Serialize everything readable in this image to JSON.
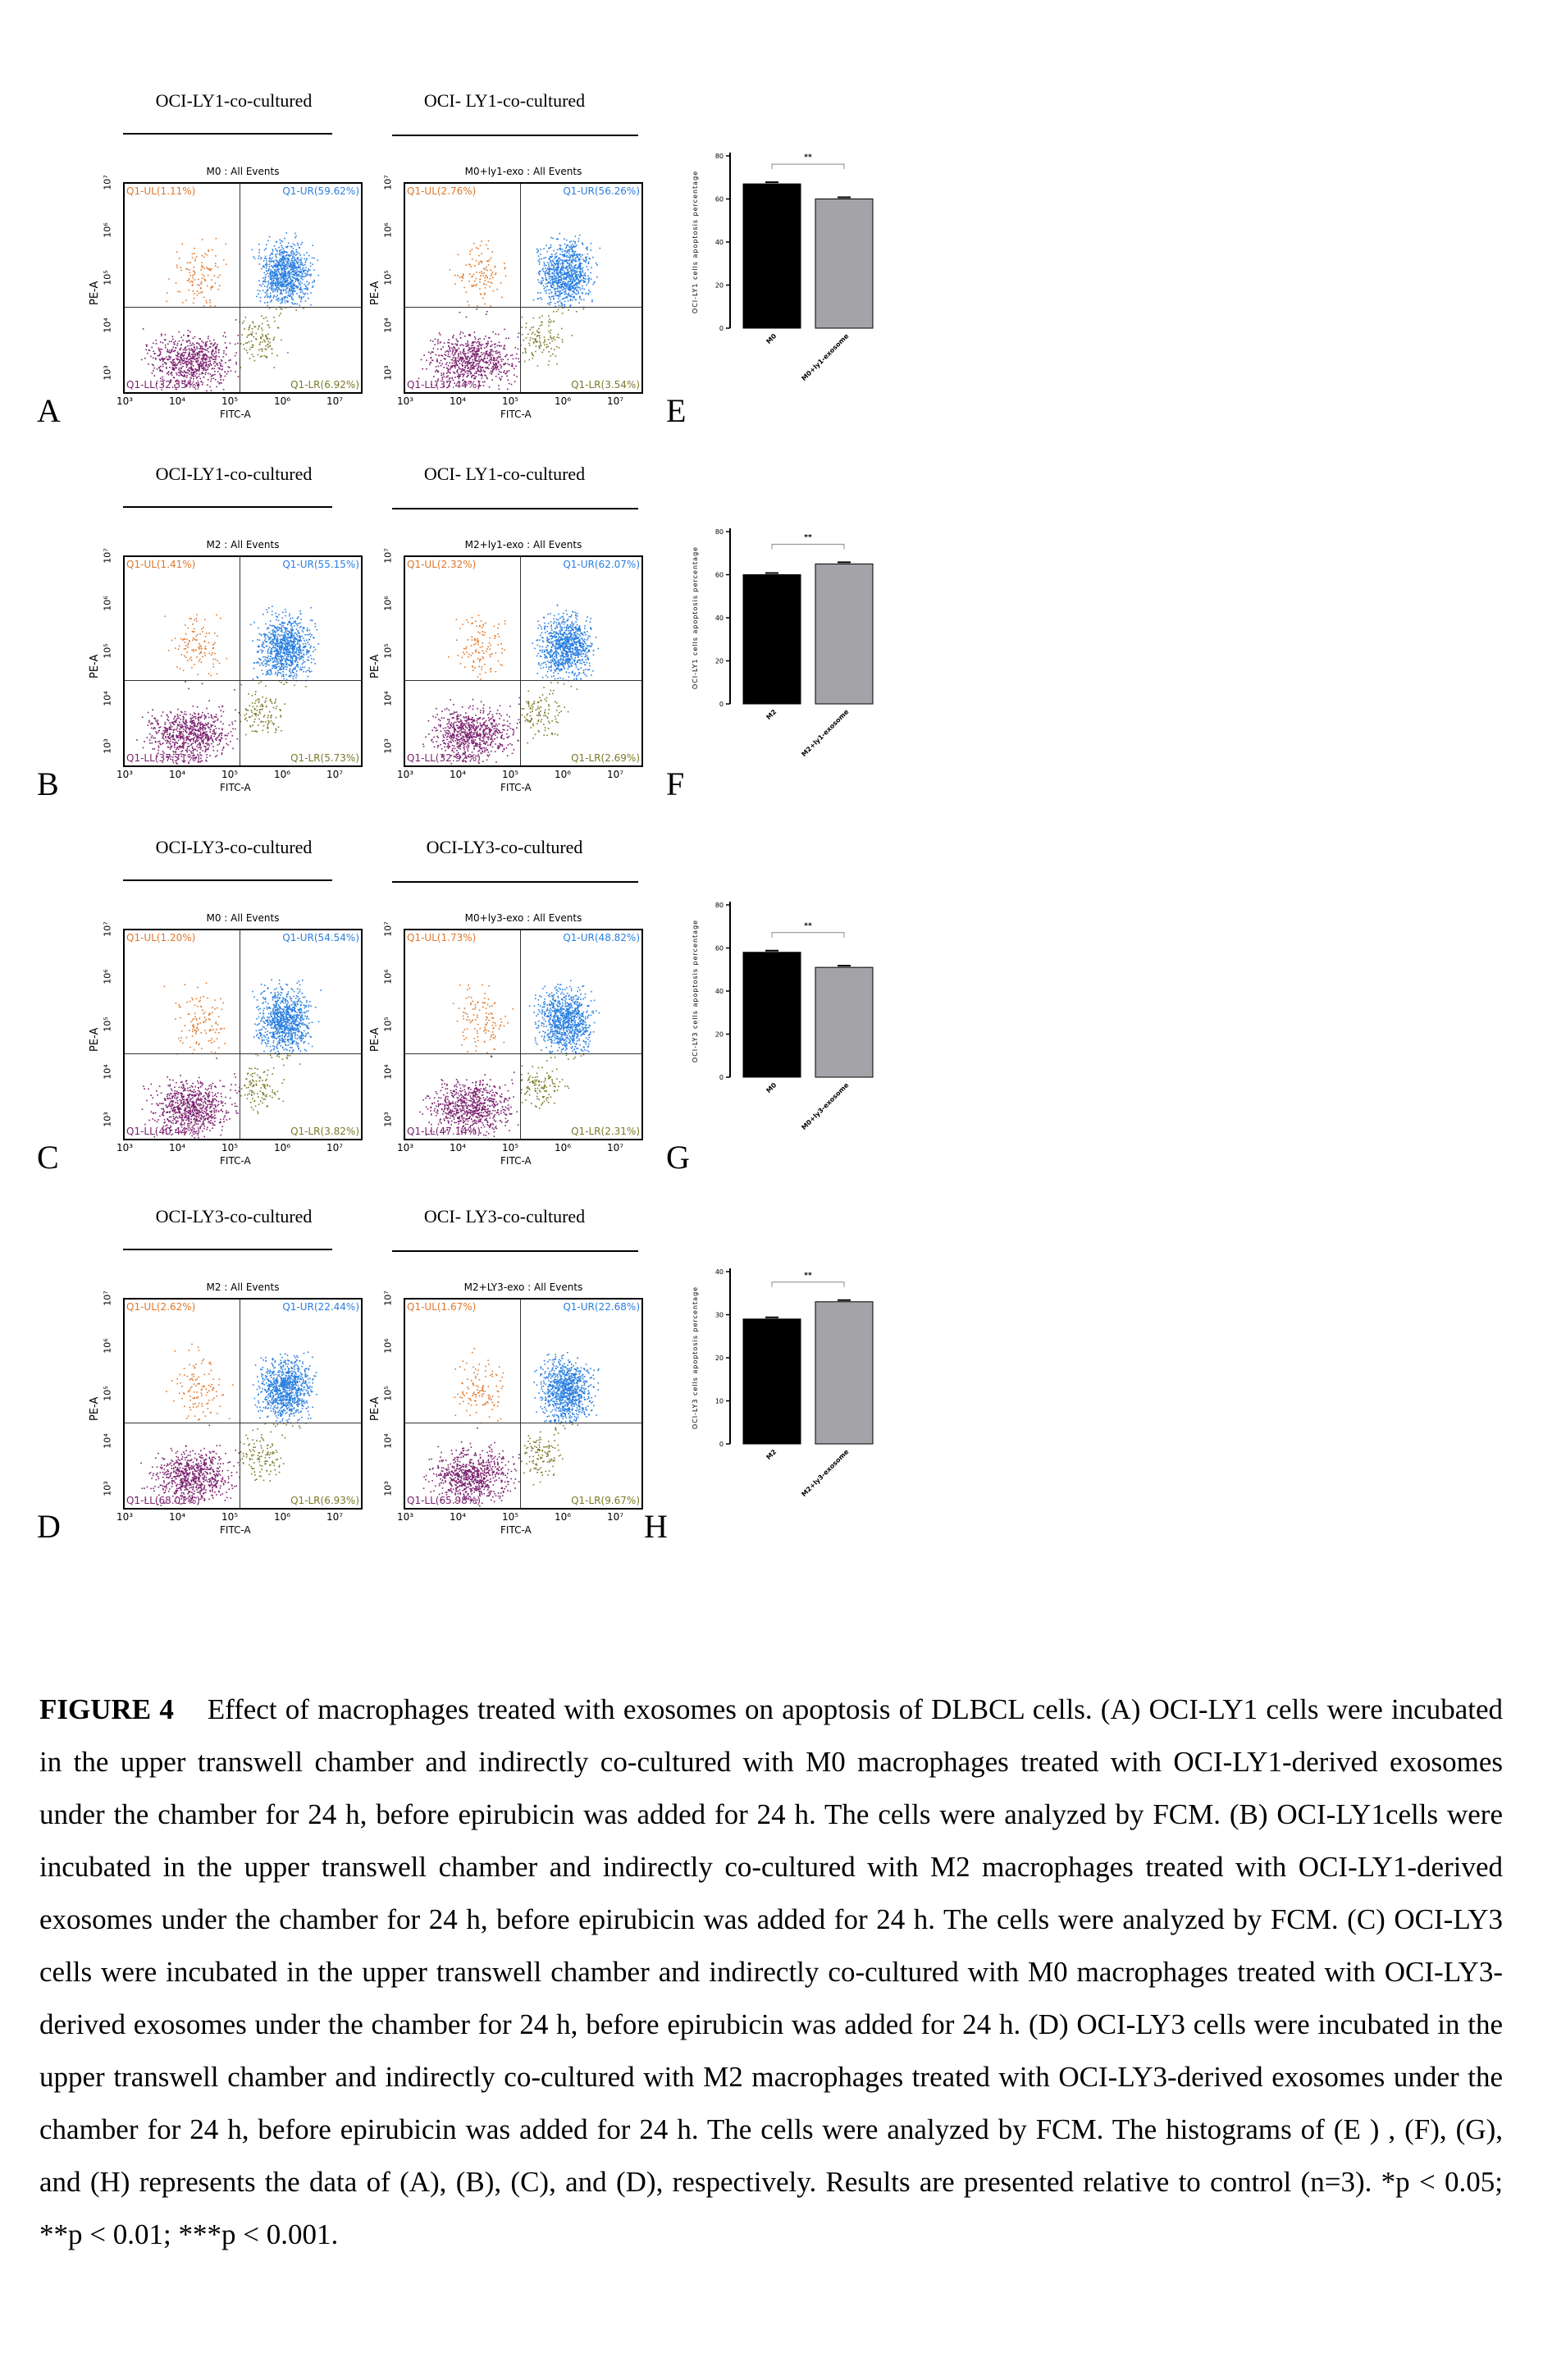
{
  "rows": [
    {
      "letter_left": "A",
      "letter_right": "E",
      "title_left": "OCI-LY1-co-cultured",
      "title_right": "OCI- LY1-co-cultured",
      "plots": [
        {
          "header": "M0 : All Events",
          "ul": "Q1-UL(1.11%)",
          "ur": "Q1-UR(59.62%)",
          "ll": "Q1-LL(32.35%)",
          "lr": "Q1-LR(6.92%)"
        },
        {
          "header": "M0+ly1-exo : All Events",
          "ul": "Q1-UL(2.76%)",
          "ur": "Q1-UR(56.26%)",
          "ll": "Q1-LL(37.44%)",
          "lr": "Q1-LR(3.54%)"
        }
      ]
    },
    {
      "letter_left": "B",
      "letter_right": "F",
      "title_left": "OCI-LY1-co-cultured",
      "title_right": "OCI- LY1-co-cultured",
      "plots": [
        {
          "header": "M2 : All Events",
          "ul": "Q1-UL(1.41%)",
          "ur": "Q1-UR(55.15%)",
          "ll": "Q1-LL(37.71%)",
          "lr": "Q1-LR(5.73%)"
        },
        {
          "header": "M2+ly1-exo : All Events",
          "ul": "Q1-UL(2.32%)",
          "ur": "Q1-UR(62.07%)",
          "ll": "Q1-LL(32.92%)",
          "lr": "Q1-LR(2.69%)"
        }
      ]
    },
    {
      "letter_left": "C",
      "letter_right": "G",
      "title_left": "OCI-LY3-co-cultured",
      "title_right": "OCI-LY3-co-cultured",
      "plots": [
        {
          "header": "M0 : All Events",
          "ul": "Q1-UL(1.20%)",
          "ur": "Q1-UR(54.54%)",
          "ll": "Q1-LL(40.44%)",
          "lr": "Q1-LR(3.82%)"
        },
        {
          "header": "M0+ly3-exo : All Events",
          "ul": "Q1-UL(1.73%)",
          "ur": "Q1-UR(48.82%)",
          "ll": "Q1-LL(47.14%)",
          "lr": "Q1-LR(2.31%)"
        }
      ]
    },
    {
      "letter_left": "D",
      "letter_right": "H",
      "title_left": "OCI-LY3-co-cultured",
      "title_right": "OCI- LY3-co-cultured",
      "plots": [
        {
          "header": "M2 : All Events",
          "ul": "Q1-UL(2.62%)",
          "ur": "Q1-UR(22.44%)",
          "ll": "Q1-LL(68.01%)",
          "lr": "Q1-LR(6.93%)"
        },
        {
          "header": "M2+LY3-exo : All Events",
          "ul": "Q1-UL(1.67%)",
          "ur": "Q1-UR(22.68%)",
          "ll": "Q1-LL(65.98%)",
          "lr": "Q1-LR(9.67%)"
        }
      ]
    }
  ],
  "axes": {
    "y_label": "PE-A",
    "x_label": "FITC-A",
    "y_ticks": [
      "10⁷",
      "10⁶",
      "10⁵",
      "10⁴",
      "10³"
    ],
    "x_ticks": [
      "10³",
      "10⁴",
      "10⁵",
      "10⁶",
      "10⁷"
    ]
  },
  "chart_data": [
    {
      "type": "bar",
      "panel": "E",
      "categories": [
        "M0",
        "M0+ly1-exosome"
      ],
      "values": [
        67,
        60
      ],
      "ylabel": "OCI-LY1 cells apoptosis percentage",
      "ylim": [
        0,
        80
      ],
      "yticks": [
        0,
        20,
        40,
        60,
        80
      ],
      "significance": "**"
    },
    {
      "type": "bar",
      "panel": "F",
      "categories": [
        "M2",
        "M2+ly1-exosome"
      ],
      "values": [
        60,
        65
      ],
      "ylabel": "OCI-LY1 cells apoptosis percentage",
      "ylim": [
        0,
        80
      ],
      "yticks": [
        0,
        20,
        40,
        60,
        80
      ],
      "significance": "**"
    },
    {
      "type": "bar",
      "panel": "G",
      "categories": [
        "M0",
        "M0+ly3-exosome"
      ],
      "values": [
        58,
        51
      ],
      "ylabel": "OCI-LY3 cells apoptosis percentage",
      "ylim": [
        0,
        80
      ],
      "yticks": [
        0,
        20,
        40,
        60,
        80
      ],
      "significance": "**"
    },
    {
      "type": "bar",
      "panel": "H",
      "categories": [
        "M2",
        "M2+ly3-exosome"
      ],
      "values": [
        29,
        33
      ],
      "ylabel": "OCI-LY3 cells apoptosis percentage",
      "ylim": [
        0,
        40
      ],
      "yticks": [
        0,
        10,
        20,
        30,
        40
      ],
      "significance": "**"
    }
  ],
  "colors": {
    "ul": "#e0772a",
    "ur": "#2a7fe0",
    "ll": "#7a1f6e",
    "lr": "#7a7a2a",
    "bar1": "#000000",
    "bar2": "#a3a3a8"
  },
  "caption": {
    "label": "FIGURE 4",
    "text": "Effect of macrophages treated with exosomes on apoptosis of DLBCL cells. (A) OCI-LY1 cells were incubated in the upper transwell chamber and indirectly co-cultured with M0 macrophages treated with OCI-LY1-derived exosomes under the chamber for 24 h, before epirubicin was added for 24 h. The cells were analyzed by FCM. (B) OCI-LY1cells were incubated in the upper transwell chamber and indirectly co-cultured with M2 macrophages treated with OCI-LY1-derived exosomes under the chamber for 24 h, before epirubicin was added for 24 h. The cells were analyzed by FCM. (C) OCI-LY3 cells were incubated in the upper transwell chamber and indirectly co-cultured with M0 macrophages treated with OCI-LY3-derived exosomes under the chamber for 24 h, before epirubicin was added for 24 h. (D) OCI-LY3 cells were incubated in the upper transwell chamber and indirectly co-cultured with M2 macrophages treated with OCI-LY3-derived exosomes under the chamber for 24 h, before epirubicin was added for 24 h. The cells were analyzed by FCM. The histograms of (E ) , (F), (G), and (H) represents the data of (A), (B), (C), and (D), respectively. Results are presented relative to control (n=3). *p < 0.05; **p < 0.01; ***p < 0.001."
  }
}
